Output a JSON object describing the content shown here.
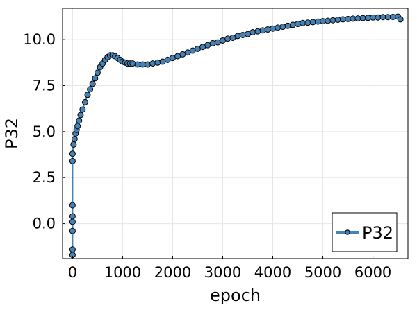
{
  "chart_data": {
    "type": "line",
    "title": "",
    "xlabel": "epoch",
    "ylabel": "P32",
    "xlim": [
      -200,
      6700
    ],
    "ylim": [
      -1.9,
      11.7
    ],
    "grid": true,
    "legend": "bottom-right",
    "colors": {
      "line": "#4682b4",
      "marker_fill": "#4682b4",
      "marker_stroke": "#000000",
      "grid": "#e6e6e6",
      "axis": "#000000"
    },
    "x_ticks": [
      0,
      1000,
      2000,
      3000,
      4000,
      5000,
      6000
    ],
    "x_tick_labels": [
      "0",
      "1000",
      "2000",
      "3000",
      "4000",
      "5000",
      "6000"
    ],
    "y_ticks": [
      0.0,
      2.5,
      5.0,
      7.5,
      10.0
    ],
    "y_tick_labels": [
      "0.0",
      "2.5",
      "5.0",
      "7.5",
      "10.0"
    ],
    "series": [
      {
        "name": "P32",
        "x": [
          0,
          0,
          0,
          0,
          0,
          0,
          0,
          0,
          20,
          40,
          60,
          80,
          100,
          130,
          160,
          200,
          250,
          300,
          350,
          400,
          450,
          500,
          550,
          600,
          650,
          700,
          750,
          800,
          850,
          900,
          950,
          1000,
          1050,
          1100,
          1150,
          1200,
          1300,
          1400,
          1500,
          1600,
          1700,
          1800,
          1900,
          2000,
          2100,
          2200,
          2300,
          2400,
          2500,
          2600,
          2700,
          2800,
          2900,
          3000,
          3100,
          3200,
          3300,
          3400,
          3500,
          3600,
          3700,
          3800,
          3900,
          4000,
          4100,
          4200,
          4300,
          4400,
          4500,
          4600,
          4700,
          4800,
          4900,
          5000,
          5100,
          5200,
          5300,
          5400,
          5500,
          5600,
          5700,
          5800,
          5900,
          6000,
          6100,
          6200,
          6300,
          6400,
          6500,
          6550
        ],
        "y": [
          -1.7,
          -1.4,
          -0.4,
          0.1,
          0.4,
          1.0,
          3.4,
          3.8,
          4.3,
          4.6,
          4.9,
          5.1,
          5.3,
          5.6,
          5.9,
          6.2,
          6.6,
          7.0,
          7.3,
          7.6,
          7.9,
          8.2,
          8.5,
          8.7,
          8.9,
          9.05,
          9.15,
          9.15,
          9.1,
          9.0,
          8.9,
          8.8,
          8.75,
          8.7,
          8.7,
          8.7,
          8.65,
          8.65,
          8.65,
          8.7,
          8.75,
          8.8,
          8.9,
          9.0,
          9.1,
          9.2,
          9.3,
          9.4,
          9.5,
          9.6,
          9.7,
          9.8,
          9.85,
          9.95,
          10.05,
          10.1,
          10.2,
          10.25,
          10.3,
          10.4,
          10.45,
          10.5,
          10.55,
          10.6,
          10.65,
          10.7,
          10.75,
          10.8,
          10.85,
          10.9,
          10.92,
          10.95,
          10.98,
          11.0,
          11.02,
          11.05,
          11.08,
          11.1,
          11.12,
          11.14,
          11.15,
          11.17,
          11.18,
          11.2,
          11.2,
          11.22,
          11.22,
          11.23,
          11.25,
          11.1
        ]
      }
    ]
  }
}
